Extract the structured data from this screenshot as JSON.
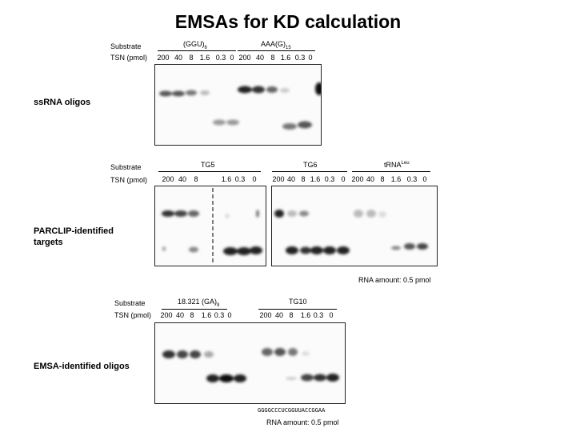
{
  "title": "EMSAs for KD calculation",
  "common": {
    "substrate_label": "Substrate",
    "tsn_label": "TSN (pmol)",
    "rna_amount": "RNA amount: 0.5 pmol"
  },
  "panel1": {
    "section_label": "ssRNA oligos",
    "group1": {
      "name": "(GGU)",
      "sub": "6",
      "lanes": [
        "200",
        "40",
        "8",
        "1.6",
        "0.3",
        "0"
      ],
      "bands": [
        {
          "lane": 0,
          "level": "upper",
          "intensity": 0.75
        },
        {
          "lane": 1,
          "level": "upper",
          "intensity": 0.75
        },
        {
          "lane": 2,
          "level": "upper",
          "intensity": 0.6
        },
        {
          "lane": 3,
          "level": "upper",
          "intensity": 0.3
        },
        {
          "lane": 4,
          "level": "lower",
          "intensity": 0.5
        },
        {
          "lane": 5,
          "level": "lower",
          "intensity": 0.5
        }
      ]
    },
    "group2": {
      "name": "AAA(G)",
      "sub": "15",
      "lanes": [
        "200",
        "40",
        "8",
        "1.6",
        "0.3",
        "0"
      ],
      "bands": [
        {
          "lane": 0,
          "level": "upper",
          "intensity": 0.9
        },
        {
          "lane": 1,
          "level": "upper",
          "intensity": 0.85
        },
        {
          "lane": 2,
          "level": "upper",
          "intensity": 0.55
        },
        {
          "lane": 3,
          "level": "upper",
          "intensity": 0.2
        },
        {
          "lane": 4,
          "level": "lower",
          "intensity": 0.55
        },
        {
          "lane": 5,
          "level": "lower",
          "intensity": 0.7
        },
        {
          "lane": 5,
          "level": "top",
          "intensity": 0.95
        }
      ]
    }
  },
  "panel2": {
    "section_label_line1": "PARCLIP-identified",
    "section_label_line2": "targets",
    "tg5": {
      "name": "TG5",
      "lanes_left": [
        "200",
        "40",
        "8"
      ],
      "lanes_right": [
        "1.6",
        "0.3",
        "0"
      ]
    },
    "tg6": {
      "name": "TG6",
      "lanes": [
        "200",
        "40",
        "8",
        "1.6",
        "0.3",
        "0"
      ]
    },
    "trna": {
      "name": "tRNA",
      "sup": "Leu",
      "lanes": [
        "200",
        "40",
        "8",
        "1.6",
        "0.3",
        "0"
      ]
    }
  },
  "panel3": {
    "section_label": "EMSA-identified oligos",
    "group1": {
      "name": "18.321 (GA)",
      "sub": "9",
      "lanes": [
        "200",
        "40",
        "8",
        "1.6",
        "0.3",
        "0"
      ]
    },
    "group2": {
      "name": "TG10",
      "lanes": [
        "200",
        "40",
        "8",
        "1.6",
        "0.3",
        "0"
      ]
    },
    "sequence": "GGGGCCCUCGGUUACCGGAA"
  }
}
